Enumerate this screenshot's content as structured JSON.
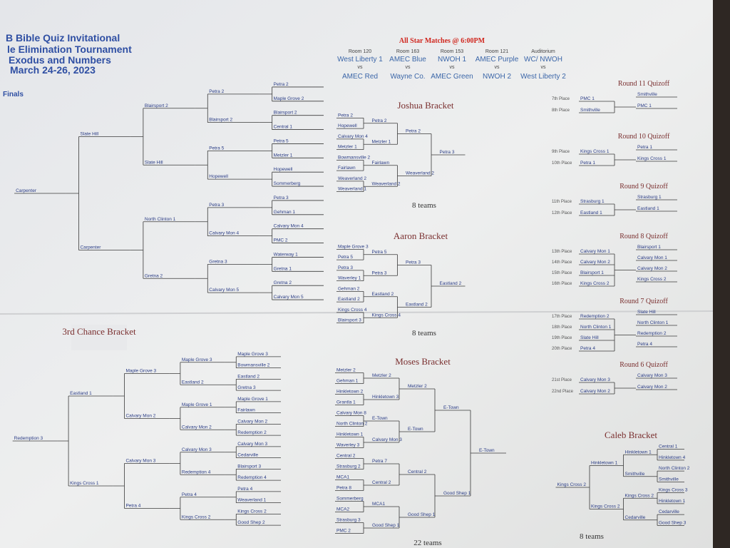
{
  "header": {
    "title_lines": [
      "B Bible Quiz Invitational",
      "le Elimination Tournament",
      "Exodus and Numbers",
      "March 24-26, 2023"
    ]
  },
  "finals_label": "Finals",
  "all_star": {
    "title": "All Star Matches @ 6:00PM",
    "matches": [
      {
        "room": "Room 120",
        "team1": "West Liberty 1",
        "vs": "vs",
        "team2": "AMEC Red"
      },
      {
        "room": "Room 163",
        "team1": "AMEC Blue",
        "vs": "vs",
        "team2": "Wayne Co."
      },
      {
        "room": "Room 153",
        "team1": "NWOH 1",
        "vs": "vs",
        "team2": "AMEC Green"
      },
      {
        "room": "Room 121",
        "team1": "AMEC Purple",
        "vs": "vs",
        "team2": "NWOH 2"
      },
      {
        "room": "Auditorium",
        "team1": "WC/ NWOH",
        "vs": "vs",
        "team2": "West Liberty 2"
      }
    ]
  },
  "main_bracket": {
    "rounds": [
      [
        "Petra 2",
        "Maple Grove 2",
        "Blairsport 2",
        "Central 1",
        "Petra 5",
        "Metzler 1",
        "Hopewell",
        "Sommerberg",
        "Petra 3",
        "Gehman 1",
        "Calvary Mon 4",
        "PMC 2",
        "Waterway 1",
        "Gretna 1",
        "Gretna 2",
        "Calvary Mon 5"
      ],
      [
        "Petra 2",
        "Blairsport 2",
        "Petra 5",
        "Hopewell",
        "Petra 3",
        "Calvary Mon 4",
        "Gretna 3",
        "Calvary Mon 5"
      ],
      [
        "Blairsport 2",
        "Slate Hill",
        "North Clinton 1",
        "Gretna 2"
      ],
      [
        "Slate Hill",
        "Carpenter"
      ],
      [
        "Carpenter"
      ]
    ]
  },
  "third_chance": {
    "title": "3rd Chance Bracket",
    "rounds": [
      [
        "Maple Grove 3",
        "Bowmansville 2",
        "Eastland 2",
        "Gretna 3",
        "Maple Grove 1",
        "Fairlawn",
        "Calvary Mon 2",
        "Redemption 2",
        "Calvary Mon 3",
        "Cedarville",
        "Blairsport 3",
        "Redemption 4",
        "Petra 4",
        "Weaverland 1",
        "Kings Cross 2",
        "Good Shep 2"
      ],
      [
        "Maple Grove 3",
        "Eastland 2",
        "Maple Grove 1",
        "Calvary Mon 2",
        "Calvary Mon 3",
        "Redemption 4",
        "Petra 4",
        "Kings Cross 2"
      ],
      [
        "Maple Grove 3",
        "Calvary Mon 2",
        "Calvary Mon 3",
        "Petra 4"
      ],
      [
        "Eastland 1",
        "Kings Cross 1"
      ],
      [
        "Redemption 3"
      ]
    ]
  },
  "brackets": [
    {
      "title": "Joshua Bracket",
      "teams_label": "8 teams",
      "rounds": [
        [
          "Petra 2",
          "Hopewell",
          "Calvary Mon 4",
          "Metzler 1",
          "Bowmansville 2",
          "Fairlawn",
          "Weaverland 2",
          "Weaverland 1"
        ],
        [
          "Petra 2",
          "Metzler 1",
          "Fairlawn",
          "Weaverland 2"
        ],
        [
          "Petra 2",
          "Weaverland 2"
        ],
        [
          "Petra 3"
        ]
      ]
    },
    {
      "title": "Aaron Bracket",
      "teams_label": "8 teams",
      "rounds": [
        [
          "Maple Grove 3",
          "Petra 5",
          "Petra 3",
          "Waverley 1",
          "Gehman 2",
          "Eastland 2",
          "Kings Cross 4",
          "Blairsport 3"
        ],
        [
          "Petra 5",
          "Petra 3",
          "Eastland 2",
          "Kings Cross 4"
        ],
        [
          "Petra 3",
          "Eastland 2"
        ],
        [
          "Eastland 2"
        ]
      ]
    },
    {
      "title": "Moses Bracket",
      "teams_label": "22 teams",
      "rounds": [
        [
          "Metzler 2",
          "Gehman 1",
          "Hinkletown 2",
          "Grantla 1",
          "Calvary Mon 8",
          "North Clinton 2",
          "Hinkletown 1",
          "Waverley 3",
          "Central 2",
          "Strasburg 2",
          "MCA1",
          "Petra 8",
          "Sommerberg",
          "MCA2",
          "Strasburg 3",
          "PMC 2"
        ],
        [
          "Metzler 2",
          "Hinkletown 3",
          "E-Town",
          "Calvary Mon 3",
          "Petra 7",
          "Central 2",
          "MCA1",
          "Good Shep 1"
        ],
        [
          "Metzler 2",
          "E-Town",
          "Central 2",
          "Good Shep 1"
        ],
        [
          "E-Town",
          "Good Shep 1"
        ],
        [
          "E-Town"
        ]
      ]
    },
    {
      "title": "Caleb Bracket",
      "teams_label": "8 teams",
      "rounds": [
        [
          "Central 1",
          "Hinkletown 4",
          "North Clinton 2",
          "Smithville",
          "Kings Cross 3",
          "Hinkletown 1",
          "Cedarville",
          "Good Shep 3"
        ],
        [
          "Hinkletown 1",
          "Smithville",
          "Kings Cross 2",
          "Cedarville"
        ],
        [
          "Hinkletown 1",
          "Kings Cross 2"
        ],
        [
          "Kings Cross 2"
        ]
      ]
    }
  ],
  "quizoffs": [
    {
      "title": "Round 11 Quizoff",
      "places": [
        "7th Place",
        "8th Place"
      ],
      "teams": [
        "PMC 1",
        "Smithville"
      ],
      "results": [
        "Smithville",
        "PMC 1"
      ]
    },
    {
      "title": "Round 10 Quizoff",
      "places": [
        "9th Place",
        "10th Place"
      ],
      "teams": [
        "Kings Cross 1",
        "Petra 1"
      ],
      "results": [
        "Petra 1",
        "Kings Cross 1"
      ]
    },
    {
      "title": "Round 9 Quizoff",
      "places": [
        "11th Place",
        "12th Place"
      ],
      "teams": [
        "Strasburg 1",
        "Eastland 1"
      ],
      "results": [
        "Strasburg 1",
        "Eastland 1"
      ]
    },
    {
      "title": "Round 8 Quizoff",
      "places": [
        "13th Place",
        "14th Place",
        "15th Place",
        "16th Place"
      ],
      "teams": [
        "Calvary Mon 1",
        "Calvary Mon 2",
        "Blairsport 1",
        "Kings Cross 2"
      ],
      "results": [
        "Blairsport 1",
        "Calvary Mon 1",
        "Calvary Mon 2",
        "Kings Cross 2"
      ]
    },
    {
      "title": "Round 7 Quizoff",
      "places": [
        "17th Place",
        "18th Place",
        "19th Place",
        "20th Place"
      ],
      "teams": [
        "Redemption 2",
        "North Clinton 1",
        "Slate Hill",
        "Petra 4"
      ],
      "results": [
        "Slate Hill",
        "North Clinton 1",
        "Redemption 2",
        "Petra 4"
      ]
    },
    {
      "title": "Round 6 Quizoff",
      "places": [
        "21st Place",
        "22nd Place"
      ],
      "teams": [
        "Calvary Mon 3",
        "Calvary Mon 2"
      ],
      "results": [
        "Calvary Mon 3",
        "Calvary Mon 2"
      ]
    }
  ]
}
